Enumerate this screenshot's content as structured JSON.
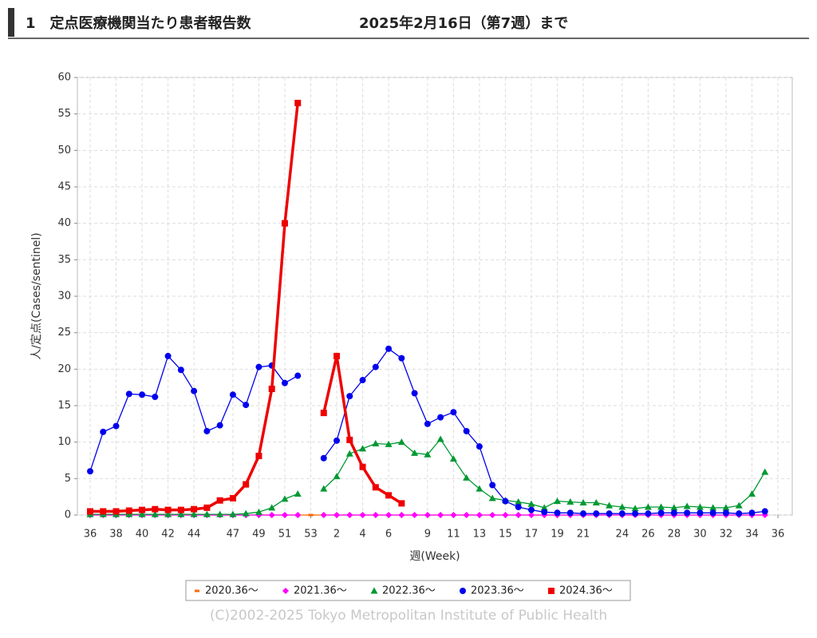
{
  "header": {
    "title": "1　定点医療機関当たり患者報告数",
    "date": "2025年2月16日（第7週）まで"
  },
  "chart_data": {
    "type": "line",
    "ylabel": "人/定点(Cases/sentinel)",
    "xlabel": "週(Week)",
    "copyright": "(C)2002-2025 Tokyo Metropolitan Institute of Public Health",
    "ylim": [
      0,
      60
    ],
    "yticks": [
      0,
      5,
      10,
      15,
      20,
      25,
      30,
      35,
      40,
      45,
      50,
      55,
      60
    ],
    "grid": true,
    "categories": [
      "36",
      null,
      "38",
      null,
      "40",
      null,
      "42",
      null,
      "44",
      null,
      null,
      "47",
      null,
      "49",
      null,
      "51",
      null,
      "53",
      null,
      "2",
      null,
      "4",
      null,
      "6",
      null,
      null,
      "9",
      null,
      "11",
      null,
      "13",
      null,
      "15",
      null,
      "17",
      null,
      "19",
      null,
      "21",
      null,
      null,
      "24",
      null,
      "26",
      null,
      "28",
      null,
      "30",
      null,
      "32",
      null,
      "34",
      null,
      "36"
    ],
    "series": [
      {
        "name": "2020.36～",
        "color": "#ff6600",
        "marker": "dash",
        "values": [
          0,
          0,
          0,
          0,
          0,
          0,
          0,
          0,
          0,
          0,
          0,
          0,
          0,
          0,
          0,
          0,
          0,
          0,
          0,
          0,
          0,
          0,
          0,
          0,
          0,
          0,
          0,
          0,
          0,
          0,
          0,
          0,
          0,
          0,
          0,
          0,
          0,
          0,
          0,
          0,
          0,
          0,
          0,
          0,
          0,
          0,
          0,
          0,
          0,
          0,
          0,
          0,
          0,
          null
        ]
      },
      {
        "name": "2021.36～",
        "color": "#ff00ff",
        "marker": "diamond",
        "values": [
          0,
          0,
          0,
          0,
          0,
          0,
          0,
          0,
          0,
          0,
          0,
          0,
          0,
          0,
          0,
          0,
          0,
          null,
          0,
          0,
          0,
          0,
          0,
          0,
          0,
          0,
          0,
          0,
          0,
          0,
          0,
          0,
          0,
          0,
          0,
          0,
          0,
          0,
          0,
          0,
          0,
          0,
          0,
          0,
          0,
          0,
          0,
          0,
          0,
          0,
          0,
          0,
          0,
          null
        ]
      },
      {
        "name": "2022.36～",
        "color": "#009933",
        "marker": "triangle",
        "values": [
          0.1,
          0.1,
          0.1,
          0.1,
          0.1,
          0.1,
          0.1,
          0.1,
          0.1,
          0.1,
          0.1,
          0.1,
          0.2,
          0.4,
          1.0,
          2.2,
          2.9,
          null,
          3.6,
          5.3,
          8.4,
          9.1,
          9.8,
          9.7,
          10.0,
          8.5,
          8.3,
          10.4,
          7.7,
          5.1,
          3.6,
          2.3,
          2.0,
          1.8,
          1.5,
          1.0,
          1.9,
          1.8,
          1.7,
          1.7,
          1.3,
          1.1,
          0.9,
          1.1,
          1.1,
          1.0,
          1.2,
          1.1,
          1.0,
          1.0,
          1.3,
          2.9,
          5.9,
          null
        ]
      },
      {
        "name": "2023.36～",
        "color": "#0000ee",
        "marker": "circle",
        "values": [
          6.0,
          11.4,
          12.2,
          16.6,
          16.5,
          16.2,
          21.8,
          19.9,
          17.0,
          11.5,
          12.3,
          16.5,
          15.1,
          20.3,
          20.5,
          18.1,
          19.1,
          null,
          7.8,
          10.2,
          16.3,
          18.5,
          20.3,
          22.8,
          21.5,
          16.7,
          12.5,
          13.4,
          14.1,
          11.5,
          9.4,
          4.1,
          1.9,
          1.1,
          0.7,
          0.4,
          0.3,
          0.3,
          0.2,
          0.2,
          0.2,
          0.2,
          0.2,
          0.2,
          0.3,
          0.3,
          0.3,
          0.3,
          0.3,
          0.3,
          0.2,
          0.3,
          0.5,
          null
        ]
      },
      {
        "name": "2024.36～",
        "color": "#ee0000",
        "marker": "square",
        "width": 3.5,
        "values": [
          0.5,
          0.5,
          0.5,
          0.6,
          0.7,
          0.8,
          0.7,
          0.7,
          0.8,
          1.0,
          2.0,
          2.3,
          4.2,
          8.1,
          17.3,
          40.0,
          56.5,
          null,
          14.0,
          21.8,
          10.3,
          6.6,
          3.8,
          2.7,
          1.6,
          null,
          null,
          null,
          null,
          null,
          null,
          null,
          null,
          null,
          null,
          null,
          null,
          null,
          null,
          null,
          null,
          null,
          null,
          null,
          null,
          null,
          null,
          null,
          null,
          null,
          null,
          null,
          null,
          null
        ]
      }
    ]
  }
}
